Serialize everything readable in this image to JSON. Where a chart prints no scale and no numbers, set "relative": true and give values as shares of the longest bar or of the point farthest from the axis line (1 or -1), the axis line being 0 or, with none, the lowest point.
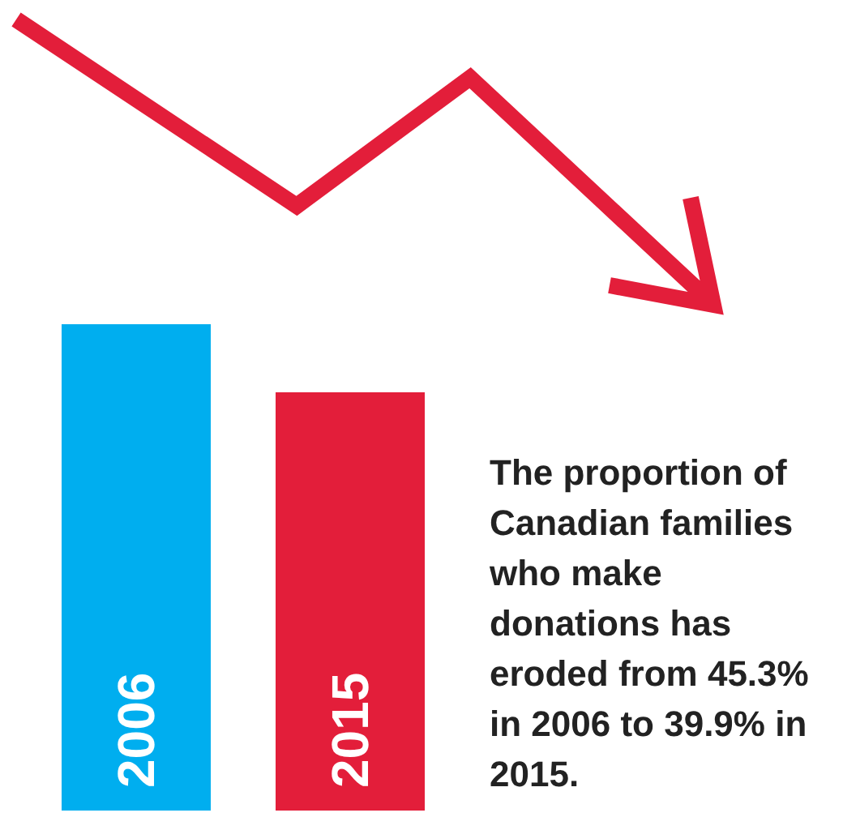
{
  "chart_data": {
    "type": "bar",
    "categories": [
      "2006",
      "2015"
    ],
    "colors": [
      "#00aeef",
      "#e31e3a"
    ],
    "values": [
      1,
      0.86
    ],
    "relative": true,
    "annotations": [
      "The proportion of Canadian families who make donations has eroded from 45.3% in 2006 to 39.9% in 2015."
    ]
  }
}
